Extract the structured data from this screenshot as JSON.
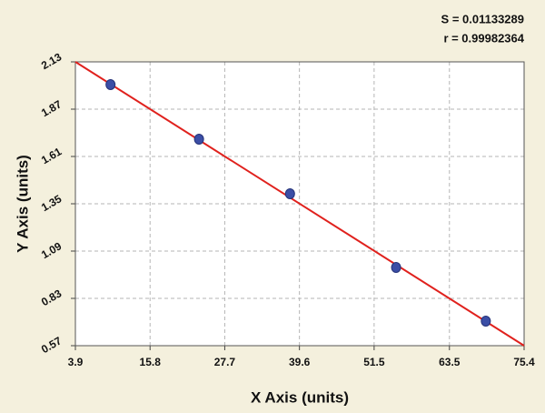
{
  "chart_data": {
    "type": "scatter",
    "stats": [
      "S = 0.01133289",
      "r = 0.99982364"
    ],
    "x_label": "X Axis (units)",
    "y_label": "Y Axis (units)",
    "x": [
      9.5,
      23.6,
      38.1,
      55.0,
      69.3
    ],
    "values": [
      2.005,
      1.705,
      1.405,
      1.0,
      0.705
    ],
    "color": "#3b4ea6",
    "fit_line": {
      "x": [
        3.9,
        75.4
      ],
      "y": [
        2.13,
        0.57
      ],
      "color": "#e0211d"
    },
    "xlim": [
      3.9,
      75.4
    ],
    "xticks": [
      3.9,
      15.8,
      27.7,
      39.6,
      51.5,
      63.5,
      75.4
    ],
    "ylim": [
      0.57,
      2.13
    ],
    "yticks": [
      0.57,
      0.83,
      1.09,
      1.35,
      1.61,
      1.87,
      2.13
    ],
    "grid": true
  }
}
